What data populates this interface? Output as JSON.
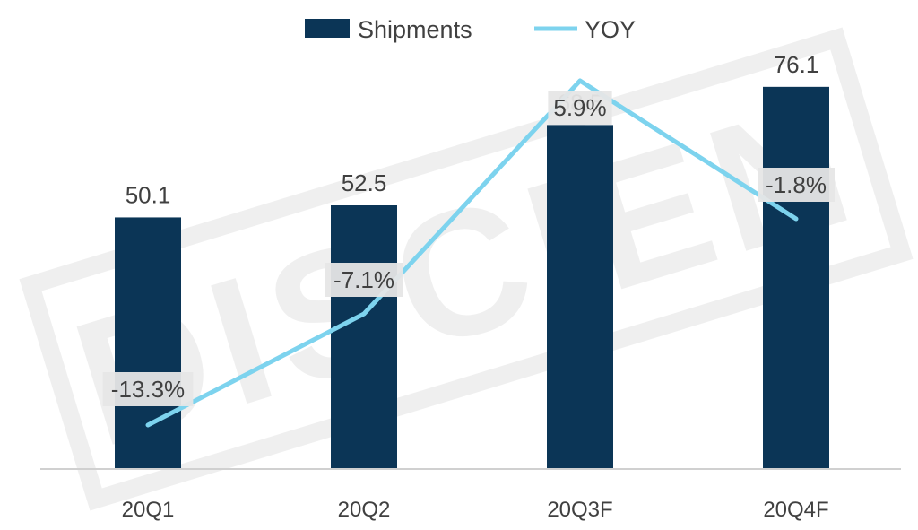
{
  "chart_data": {
    "type": "bar",
    "categories": [
      "20Q1",
      "20Q2",
      "20Q3F",
      "20Q4F"
    ],
    "series": [
      {
        "name": "Shipments",
        "kind": "bar",
        "values": [
          50.1,
          52.5,
          68.5,
          76.1
        ],
        "color": "#0B3556"
      },
      {
        "name": "YOY",
        "kind": "line",
        "values": [
          -13.3,
          -7.1,
          5.9,
          -1.8
        ],
        "labels": [
          "-13.3%",
          "-7.1%",
          "5.9%",
          "-1.8%"
        ],
        "color": "#7DD3EE"
      }
    ],
    "bar_labels": [
      "50.1",
      "52.5",
      "68.5",
      "76.1"
    ],
    "ylim": [
      0,
      80
    ],
    "y2lim": [
      -16,
      7
    ],
    "grid": false,
    "legend": {
      "placement": "top-center",
      "entries": [
        "Shipments",
        "YOY"
      ]
    },
    "watermark": "DISCIEN"
  }
}
